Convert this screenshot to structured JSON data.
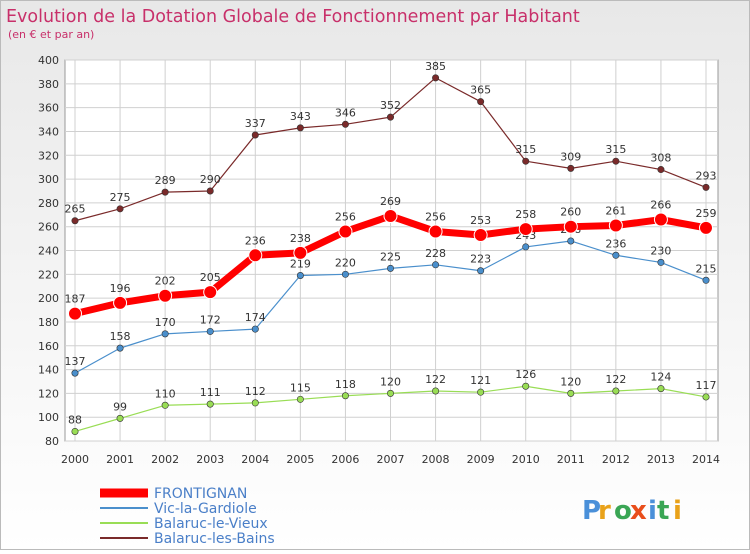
{
  "chart_data": {
    "type": "line",
    "title": "Evolution de la Dotation Globale de Fonctionnement par Habitant",
    "subtitle": "(en € et par an)",
    "x": [
      "2000",
      "2001",
      "2002",
      "2003",
      "2004",
      "2005",
      "2006",
      "2007",
      "2008",
      "2009",
      "2010",
      "2011",
      "2012",
      "2013",
      "2014"
    ],
    "ylim": [
      80,
      400
    ],
    "yticks": [
      80,
      100,
      120,
      140,
      160,
      180,
      200,
      220,
      240,
      260,
      280,
      300,
      320,
      340,
      360,
      380,
      400
    ],
    "grid": true,
    "legend_position": "bottom-left",
    "series": [
      {
        "name": "FRONTIGNAN",
        "color": "#ff0000",
        "values": [
          187,
          196,
          202,
          205,
          236,
          238,
          256,
          269,
          256,
          253,
          258,
          260,
          261,
          266,
          259
        ]
      },
      {
        "name": "Vic-la-Gardiole",
        "color": "#4a8fcc",
        "values": [
          137,
          158,
          170,
          172,
          174,
          219,
          220,
          225,
          228,
          223,
          243,
          248,
          236,
          230,
          215
        ]
      },
      {
        "name": "Balaruc-le-Vieux",
        "color": "#99dd55",
        "values": [
          88,
          99,
          110,
          111,
          112,
          115,
          118,
          120,
          122,
          121,
          126,
          120,
          122,
          124,
          117
        ]
      },
      {
        "name": "Balaruc-les-Bains",
        "color": "#7a2a2a",
        "values": [
          265,
          275,
          289,
          290,
          337,
          343,
          346,
          352,
          385,
          365,
          315,
          309,
          315,
          308,
          293
        ]
      }
    ]
  },
  "logo": {
    "text": "Proxiti"
  },
  "colors": {
    "title": "#c8306a",
    "background_top": "#eeeeee",
    "background_bottom": "#ffffff"
  }
}
